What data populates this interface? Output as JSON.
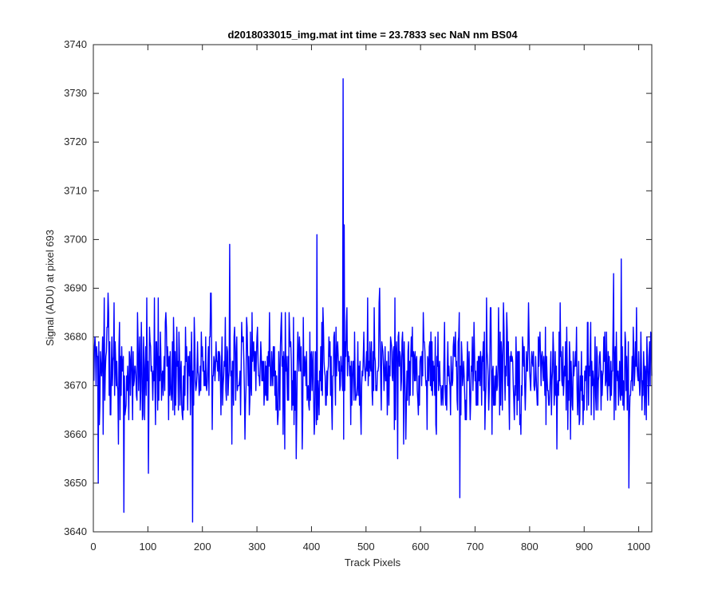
{
  "chart_data": {
    "type": "line",
    "title": "d2018033015_img.mat int time = 23.7833 sec  NaN nm BS04",
    "xlabel": "Track Pixels",
    "ylabel": "Signal (ADU) at pixel 693",
    "xlim": [
      0,
      1024
    ],
    "ylim": [
      3640,
      3740
    ],
    "x_ticks": [
      0,
      100,
      200,
      300,
      400,
      500,
      600,
      700,
      800,
      900,
      1000
    ],
    "y_ticks": [
      3640,
      3650,
      3660,
      3670,
      3680,
      3690,
      3700,
      3710,
      3720,
      3730,
      3740
    ],
    "grid": false,
    "legend": "none",
    "series": [
      {
        "color": "#0000ff",
        "x_start": 1,
        "x_step": 1,
        "count": 1024,
        "baseline_mean": 3673,
        "noise_std": 6,
        "value_range": [
          3642,
          3733
        ],
        "notable_points": [
          {
            "x": 9,
            "y": 3650
          },
          {
            "x": 56,
            "y": 3644
          },
          {
            "x": 182,
            "y": 3642
          },
          {
            "x": 250,
            "y": 3699
          },
          {
            "x": 410,
            "y": 3701
          },
          {
            "x": 458,
            "y": 3733
          },
          {
            "x": 460,
            "y": 3703
          },
          {
            "x": 672,
            "y": 3647
          },
          {
            "x": 968,
            "y": 3696
          },
          {
            "x": 982,
            "y": 3649
          }
        ]
      }
    ]
  }
}
